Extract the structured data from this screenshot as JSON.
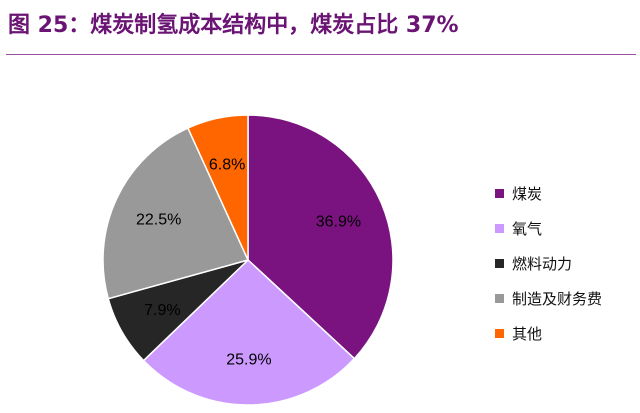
{
  "header": {
    "title": "图 25：煤炭制氢成本结构中，煤炭占比 37%"
  },
  "chart_data": {
    "type": "pie",
    "title": "",
    "categories": [
      "煤炭",
      "氧气",
      "燃料动力",
      "制造及财务费",
      "其他"
    ],
    "values": [
      36.9,
      25.9,
      7.9,
      22.5,
      6.8
    ],
    "labels": [
      "36.9%",
      "25.9%",
      "7.9%",
      "22.5%",
      "6.8%"
    ],
    "colors": [
      "#7a1380",
      "#cc99ff",
      "#262626",
      "#999999",
      "#ff6600"
    ],
    "start": "12 o'clock",
    "direction": "clockwise",
    "legend_position": "right"
  }
}
